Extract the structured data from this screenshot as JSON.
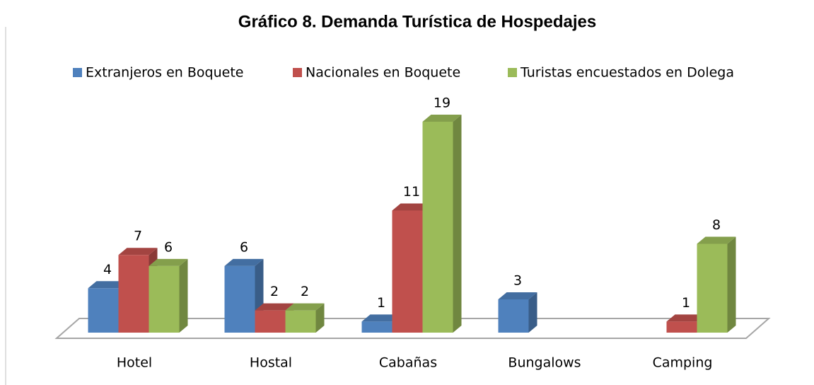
{
  "chart_data": {
    "type": "bar3d",
    "title": "Gráfico 8. Demanda Turística de Hospedajes",
    "categories": [
      "Hotel",
      "Hostal",
      "Cabañas",
      "Bungalows",
      "Camping"
    ],
    "series": [
      {
        "name": "Extranjeros en Boquete",
        "color": "#4f81bd",
        "values": [
          4,
          6,
          1,
          3,
          null
        ]
      },
      {
        "name": "Nacionales en Boquete",
        "color": "#c0504d",
        "values": [
          7,
          2,
          11,
          null,
          1
        ]
      },
      {
        "name": "Turistas encuestados en Dolega",
        "color": "#9bbb59",
        "values": [
          6,
          2,
          19,
          null,
          8
        ]
      }
    ],
    "legend": "top"
  }
}
